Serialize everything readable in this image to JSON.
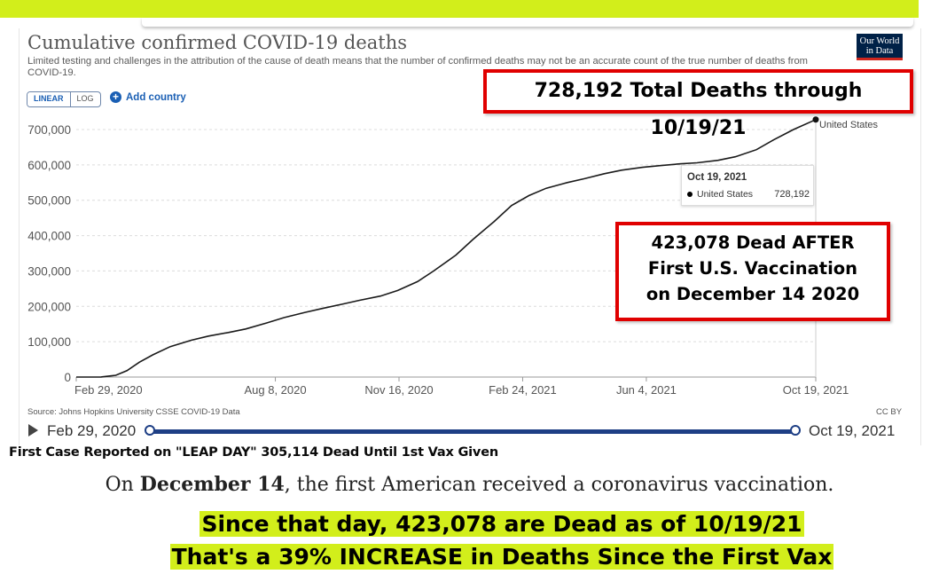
{
  "chart_data": {
    "type": "line",
    "title": "Cumulative confirmed COVID-19 deaths",
    "subtitle": "Limited testing and challenges in the attribution of the cause of death means that the number of confirmed deaths may not be an accurate count of the true number of deaths from COVID-19.",
    "source": "Source: Johns Hopkins University CSSE COVID-19 Data",
    "license": "CC BY",
    "logo": "Our World in Data",
    "scale_options": [
      "LINEAR",
      "LOG"
    ],
    "selected_scale": "LINEAR",
    "add_country_label": "Add country",
    "x_ticks": [
      "Feb 29, 2020",
      "Aug 8, 2020",
      "Nov 16, 2020",
      "Feb 24, 2021",
      "Jun 4, 2021",
      "Oct 19, 2021"
    ],
    "y_ticks": [
      "0",
      "100,000",
      "200,000",
      "300,000",
      "400,000",
      "500,000",
      "600,000",
      "700,000"
    ],
    "ylim": [
      0,
      750000
    ],
    "xlim": [
      "2020-02-29",
      "2021-10-19"
    ],
    "series": [
      {
        "name": "United States",
        "color": "#1a1a1a",
        "points": [
          [
            "2020-02-29",
            0
          ],
          [
            "2020-03-20",
            300
          ],
          [
            "2020-04-01",
            5000
          ],
          [
            "2020-04-10",
            18000
          ],
          [
            "2020-04-20",
            42000
          ],
          [
            "2020-05-01",
            63000
          ],
          [
            "2020-05-15",
            86000
          ],
          [
            "2020-06-01",
            104000
          ],
          [
            "2020-06-15",
            116000
          ],
          [
            "2020-07-01",
            126000
          ],
          [
            "2020-07-15",
            136000
          ],
          [
            "2020-08-01",
            153000
          ],
          [
            "2020-08-15",
            168000
          ],
          [
            "2020-09-01",
            183000
          ],
          [
            "2020-09-15",
            194000
          ],
          [
            "2020-10-01",
            206000
          ],
          [
            "2020-10-15",
            217000
          ],
          [
            "2020-11-01",
            229000
          ],
          [
            "2020-11-15",
            245000
          ],
          [
            "2020-12-01",
            270000
          ],
          [
            "2020-12-14",
            300000
          ],
          [
            "2021-01-01",
            345000
          ],
          [
            "2021-01-15",
            390000
          ],
          [
            "2021-02-01",
            440000
          ],
          [
            "2021-02-15",
            485000
          ],
          [
            "2021-03-01",
            513000
          ],
          [
            "2021-03-15",
            534000
          ],
          [
            "2021-04-01",
            550000
          ],
          [
            "2021-04-15",
            561000
          ],
          [
            "2021-05-01",
            575000
          ],
          [
            "2021-05-15",
            585000
          ],
          [
            "2021-06-01",
            593000
          ],
          [
            "2021-06-15",
            598000
          ],
          [
            "2021-07-01",
            603000
          ],
          [
            "2021-07-15",
            606000
          ],
          [
            "2021-08-01",
            613000
          ],
          [
            "2021-08-15",
            623000
          ],
          [
            "2021-09-01",
            643000
          ],
          [
            "2021-09-15",
            671000
          ],
          [
            "2021-10-01",
            700000
          ],
          [
            "2021-10-19",
            728192
          ]
        ]
      }
    ],
    "end_label": "United States",
    "tooltip": {
      "date": "Oct 19, 2021",
      "series": "United States",
      "value": "728,192"
    },
    "grid": true
  },
  "annotations": {
    "total_box": "728,192 Total Deaths through 10/19/21",
    "after_box": [
      "423,078 Dead AFTER",
      "First U.S. Vaccination",
      "on December 14 2020"
    ],
    "leap_caption": "First Case Reported on \"LEAP DAY\" 305,114 Dead Until 1st Vax Given",
    "news_bold": "December 14",
    "news_prefix": "On ",
    "news_rest": ", the first American received a coronavirus vaccination.",
    "green_line_1": "Since that day, 423,078 are Dead as of 10/19/21",
    "green_line_2": "That's a 39% INCREASE in Deaths Since the First Vax"
  },
  "timeline": {
    "start": "Feb 29, 2020",
    "end": "Oct 19, 2021"
  },
  "colors": {
    "highlight": "#d2ee1b",
    "box_border": "#e00000",
    "timeline": "#1e3f85",
    "link": "#1a5fb4"
  }
}
